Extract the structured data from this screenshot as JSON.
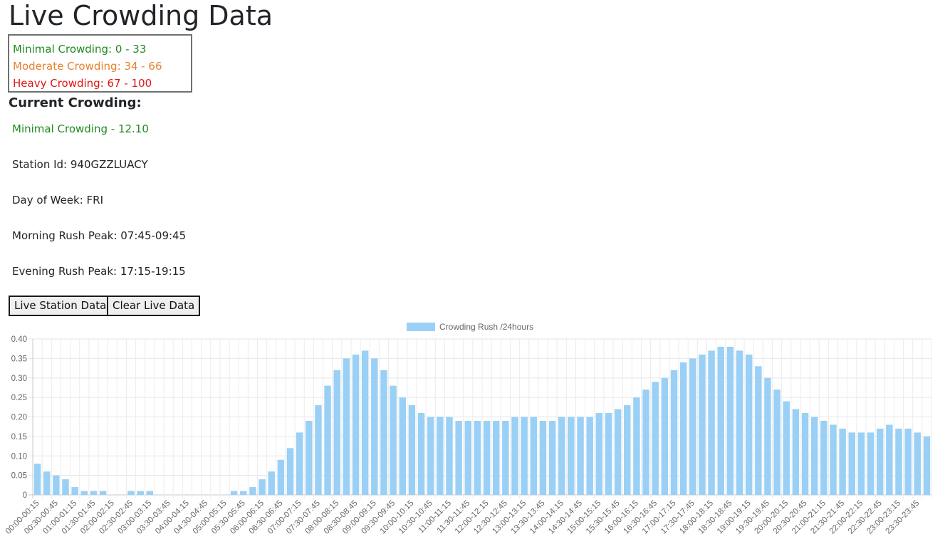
{
  "page": {
    "title": "Live Crowding Data"
  },
  "legend": {
    "minimal": {
      "label": "Minimal Crowding: 0 - 33",
      "color": "#208a20"
    },
    "moderate": {
      "label": "Moderate Crowding: 34 - 66",
      "color": "#e8812e"
    },
    "heavy": {
      "label": "Heavy Crowding: 67 - 100",
      "color": "#e01515"
    }
  },
  "current": {
    "heading": "Current Crowding:",
    "status": "Minimal Crowding - 12.10",
    "status_color": "#208a20",
    "station": "Station Id: 940GZZLUACY",
    "day": "Day of Week: FRI",
    "morning_peak": "Morning Rush Peak: 07:45-09:45",
    "evening_peak": "Evening Rush Peak: 17:15-19:15"
  },
  "buttons": {
    "live_station": "Live Station Data",
    "clear_live": "Clear Live Data"
  },
  "chart_data": {
    "type": "bar",
    "series": [
      {
        "name": "Crowding Rush /24hours",
        "color": "#9ad0f5",
        "values": [
          0.08,
          0.06,
          0.05,
          0.04,
          0.02,
          0.01,
          0.01,
          0.01,
          0,
          0,
          0.01,
          0.01,
          0.01,
          0,
          0,
          0,
          0,
          0,
          0,
          0,
          0,
          0.01,
          0.01,
          0.02,
          0.04,
          0.06,
          0.09,
          0.12,
          0.16,
          0.19,
          0.23,
          0.28,
          0.32,
          0.35,
          0.36,
          0.37,
          0.35,
          0.32,
          0.28,
          0.25,
          0.23,
          0.21,
          0.2,
          0.2,
          0.2,
          0.19,
          0.19,
          0.19,
          0.19,
          0.19,
          0.19,
          0.2,
          0.2,
          0.2,
          0.19,
          0.19,
          0.2,
          0.2,
          0.2,
          0.2,
          0.21,
          0.21,
          0.22,
          0.23,
          0.25,
          0.27,
          0.29,
          0.3,
          0.32,
          0.34,
          0.35,
          0.36,
          0.37,
          0.38,
          0.38,
          0.37,
          0.36,
          0.33,
          0.3,
          0.27,
          0.24,
          0.22,
          0.21,
          0.2,
          0.19,
          0.18,
          0.17,
          0.16,
          0.16,
          0.16,
          0.17,
          0.18,
          0.17,
          0.17,
          0.16,
          0.15
        ]
      }
    ],
    "x_tick_labels": [
      "00:00-00:15",
      "00:30-00:45",
      "01:00-01:15",
      "01:30-01:45",
      "02:00-02:15",
      "02:30-02:45",
      "03:00-03:15",
      "03:30-03:45",
      "04:00-04:15",
      "04:30-04:45",
      "05:00-05:15",
      "05:30-05:45",
      "06:00-06:15",
      "06:30-06:45",
      "07:00-07:15",
      "07:30-07:45",
      "08:00-08:15",
      "08:30-08:45",
      "09:00-09:15",
      "09:30-09:45",
      "10:00-10:15",
      "10:30-10:45",
      "11:00-11:15",
      "11:30-11:45",
      "12:00-12:15",
      "12:30-12:45",
      "13:00-13:15",
      "13:30-13:45",
      "14:00-14:15",
      "14:30-14:45",
      "15:00-15:15",
      "15:30-15:45",
      "16:00-16:15",
      "16:30-16:45",
      "17:00-17:15",
      "17:30-17:45",
      "18:00-18:15",
      "18:30-18:45",
      "19:00-19:15",
      "19:30-19:45",
      "20:00-20:15",
      "20:30-20:45",
      "21:00-21:15",
      "21:30-21:45",
      "22:00-22:15",
      "22:30-22:45",
      "23:00-23:15",
      "23:30-23:45"
    ],
    "y_tick_labels": [
      "0",
      "0.05",
      "0.10",
      "0.15",
      "0.20",
      "0.25",
      "0.30",
      "0.35",
      "0.40"
    ],
    "ylim": [
      0,
      0.4
    ],
    "grid": true,
    "legend_position": "top"
  }
}
